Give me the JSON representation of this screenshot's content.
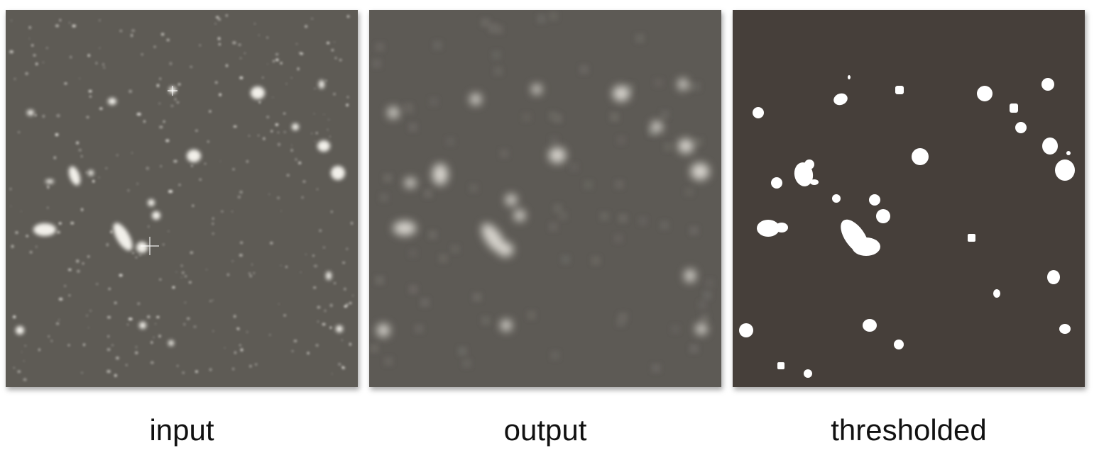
{
  "panels": [
    {
      "id": "input",
      "caption": "input"
    },
    {
      "id": "output",
      "caption": "output"
    },
    {
      "id": "thresholded",
      "caption": "thresholded"
    }
  ],
  "colors": {
    "input_background": "#5e5b55",
    "output_background": "#5d5a55",
    "thresholded_background": "#463f3a",
    "blob": "#ffffff"
  }
}
